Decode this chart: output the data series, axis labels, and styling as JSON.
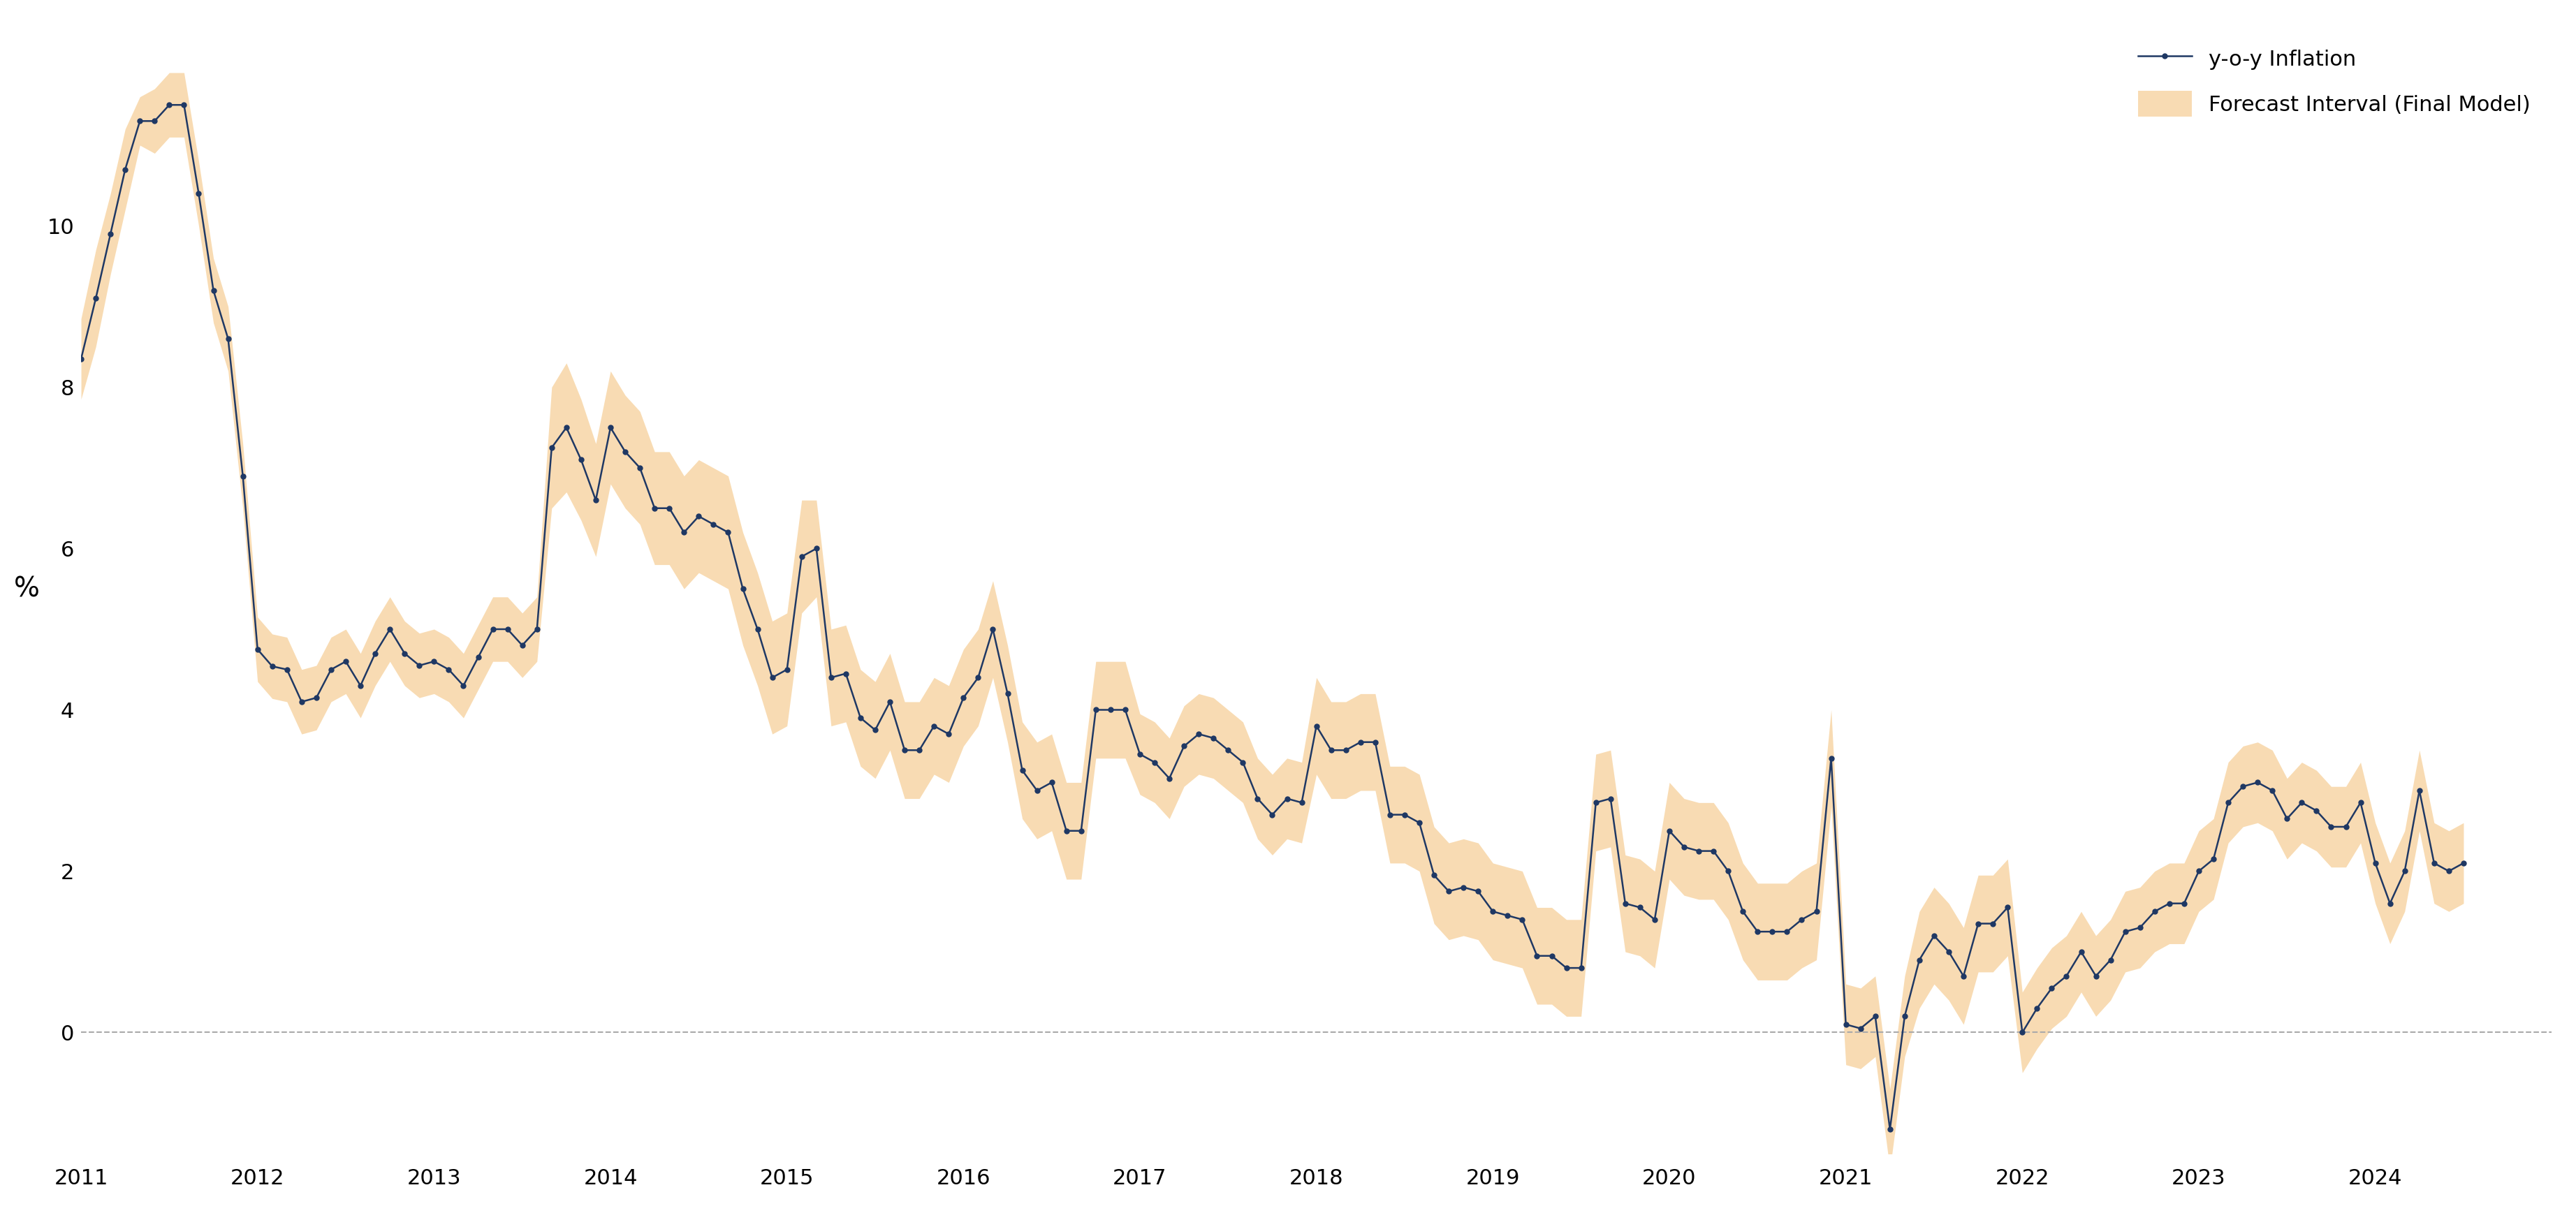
{
  "ylabel": "%",
  "line_color": "#1f3864",
  "fill_color": "#f5c98a",
  "fill_alpha": 0.65,
  "background_color": "#ffffff",
  "ylim": [
    -1.5,
    12.5
  ],
  "yticks": [
    0,
    2,
    4,
    6,
    8,
    10
  ],
  "line_width": 1.8,
  "marker": "o",
  "marker_size": 5,
  "inflation": [
    8.35,
    9.1,
    9.9,
    10.7,
    11.3,
    11.3,
    11.5,
    11.5,
    10.4,
    9.2,
    8.6,
    6.9,
    4.75,
    4.54,
    4.5,
    4.1,
    4.15,
    4.5,
    4.6,
    4.3,
    4.7,
    5.0,
    4.7,
    4.55,
    4.6,
    4.5,
    4.3,
    4.65,
    5.0,
    5.0,
    4.8,
    5.0,
    7.25,
    7.5,
    7.1,
    6.6,
    7.5,
    7.2,
    7.0,
    6.5,
    6.5,
    6.2,
    6.4,
    6.3,
    6.2,
    5.5,
    5.0,
    4.4,
    4.5,
    5.9,
    6.0,
    4.4,
    4.45,
    3.9,
    3.75,
    4.1,
    3.5,
    3.5,
    3.8,
    3.7,
    4.15,
    4.4,
    5.0,
    4.2,
    3.25,
    3.0,
    3.1,
    2.5,
    2.5,
    4.0,
    4.0,
    4.0,
    3.45,
    3.35,
    3.15,
    3.55,
    3.7,
    3.65,
    3.5,
    3.35,
    2.9,
    2.7,
    2.9,
    2.85,
    3.8,
    3.5,
    3.5,
    3.6,
    3.6,
    2.7,
    2.7,
    2.6,
    1.95,
    1.75,
    1.8,
    1.75,
    1.5,
    1.45,
    1.4,
    0.95,
    0.95,
    0.8,
    0.8,
    2.85,
    2.9,
    1.6,
    1.55,
    1.4,
    2.5,
    2.3,
    2.25,
    2.25,
    2.0,
    1.5,
    1.25,
    1.25,
    1.25,
    1.4,
    1.5,
    3.4,
    0.1,
    0.05,
    0.2,
    -1.2,
    0.2,
    0.9,
    1.2,
    1.0,
    0.7,
    1.35,
    1.35,
    1.55,
    0.0,
    0.3,
    0.55,
    0.7,
    1.0,
    0.7,
    0.9,
    1.25,
    1.3,
    1.5,
    1.6,
    1.6,
    2.0,
    2.15,
    2.85,
    3.05,
    3.1,
    3.0,
    2.65,
    2.85,
    2.75,
    2.55,
    2.55,
    2.85,
    2.1,
    1.6,
    2.0,
    3.0,
    2.1,
    2.0,
    2.1
  ],
  "lower_bound": [
    7.85,
    8.5,
    9.4,
    10.2,
    11.0,
    10.9,
    11.1,
    11.1,
    10.0,
    8.8,
    8.2,
    6.5,
    4.35,
    4.14,
    4.1,
    3.7,
    3.75,
    4.1,
    4.2,
    3.9,
    4.3,
    4.6,
    4.3,
    4.15,
    4.2,
    4.1,
    3.9,
    4.25,
    4.6,
    4.6,
    4.4,
    4.6,
    6.5,
    6.7,
    6.35,
    5.9,
    6.8,
    6.5,
    6.3,
    5.8,
    5.8,
    5.5,
    5.7,
    5.6,
    5.5,
    4.8,
    4.3,
    3.7,
    3.8,
    5.2,
    5.4,
    3.8,
    3.85,
    3.3,
    3.15,
    3.5,
    2.9,
    2.9,
    3.2,
    3.1,
    3.55,
    3.8,
    4.4,
    3.6,
    2.65,
    2.4,
    2.5,
    1.9,
    1.9,
    3.4,
    3.4,
    3.4,
    2.95,
    2.85,
    2.65,
    3.05,
    3.2,
    3.15,
    3.0,
    2.85,
    2.4,
    2.2,
    2.4,
    2.35,
    3.2,
    2.9,
    2.9,
    3.0,
    3.0,
    2.1,
    2.1,
    2.0,
    1.35,
    1.15,
    1.2,
    1.15,
    0.9,
    0.85,
    0.8,
    0.35,
    0.35,
    0.2,
    0.2,
    2.25,
    2.3,
    1.0,
    0.95,
    0.8,
    1.9,
    1.7,
    1.65,
    1.65,
    1.4,
    0.9,
    0.65,
    0.65,
    0.65,
    0.8,
    0.9,
    2.8,
    -0.4,
    -0.45,
    -0.3,
    -1.7,
    -0.3,
    0.3,
    0.6,
    0.4,
    0.1,
    0.75,
    0.75,
    0.95,
    -0.5,
    -0.2,
    0.05,
    0.2,
    0.5,
    0.2,
    0.4,
    0.75,
    0.8,
    1.0,
    1.1,
    1.1,
    1.5,
    1.65,
    2.35,
    2.55,
    2.6,
    2.5,
    2.15,
    2.35,
    2.25,
    2.05,
    2.05,
    2.35,
    1.6,
    1.1,
    1.5,
    2.5,
    1.6,
    1.5,
    1.6
  ],
  "upper_bound": [
    8.85,
    9.7,
    10.4,
    11.2,
    11.6,
    11.7,
    11.9,
    11.9,
    10.8,
    9.6,
    9.0,
    7.3,
    5.15,
    4.94,
    4.9,
    4.5,
    4.55,
    4.9,
    5.0,
    4.7,
    5.1,
    5.4,
    5.1,
    4.95,
    5.0,
    4.9,
    4.7,
    5.05,
    5.4,
    5.4,
    5.2,
    5.4,
    8.0,
    8.3,
    7.85,
    7.3,
    8.2,
    7.9,
    7.7,
    7.2,
    7.2,
    6.9,
    7.1,
    7.0,
    6.9,
    6.2,
    5.7,
    5.1,
    5.2,
    6.6,
    6.6,
    5.0,
    5.05,
    4.5,
    4.35,
    4.7,
    4.1,
    4.1,
    4.4,
    4.3,
    4.75,
    5.0,
    5.6,
    4.8,
    3.85,
    3.6,
    3.7,
    3.1,
    3.1,
    4.6,
    4.6,
    4.6,
    3.95,
    3.85,
    3.65,
    4.05,
    4.2,
    4.15,
    4.0,
    3.85,
    3.4,
    3.2,
    3.4,
    3.35,
    4.4,
    4.1,
    4.1,
    4.2,
    4.2,
    3.3,
    3.3,
    3.2,
    2.55,
    2.35,
    2.4,
    2.35,
    2.1,
    2.05,
    2.0,
    1.55,
    1.55,
    1.4,
    1.4,
    3.45,
    3.5,
    2.2,
    2.15,
    2.0,
    3.1,
    2.9,
    2.85,
    2.85,
    2.6,
    2.1,
    1.85,
    1.85,
    1.85,
    2.0,
    2.1,
    4.0,
    0.6,
    0.55,
    0.7,
    -0.7,
    0.7,
    1.5,
    1.8,
    1.6,
    1.3,
    1.95,
    1.95,
    2.15,
    0.5,
    0.8,
    1.05,
    1.2,
    1.5,
    1.2,
    1.4,
    1.75,
    1.8,
    2.0,
    2.1,
    2.1,
    2.5,
    2.65,
    3.35,
    3.55,
    3.6,
    3.5,
    3.15,
    3.35,
    3.25,
    3.05,
    3.05,
    3.35,
    2.6,
    2.1,
    2.5,
    3.5,
    2.6,
    2.5,
    2.6
  ],
  "start_year": 2011,
  "start_month": 1,
  "xtick_years": [
    2011,
    2012,
    2013,
    2014,
    2015,
    2016,
    2017,
    2018,
    2019,
    2020,
    2021,
    2022,
    2023,
    2024
  ],
  "legend_labels": [
    "y-o-y Inflation",
    "Forecast Interval (Final Model)"
  ]
}
